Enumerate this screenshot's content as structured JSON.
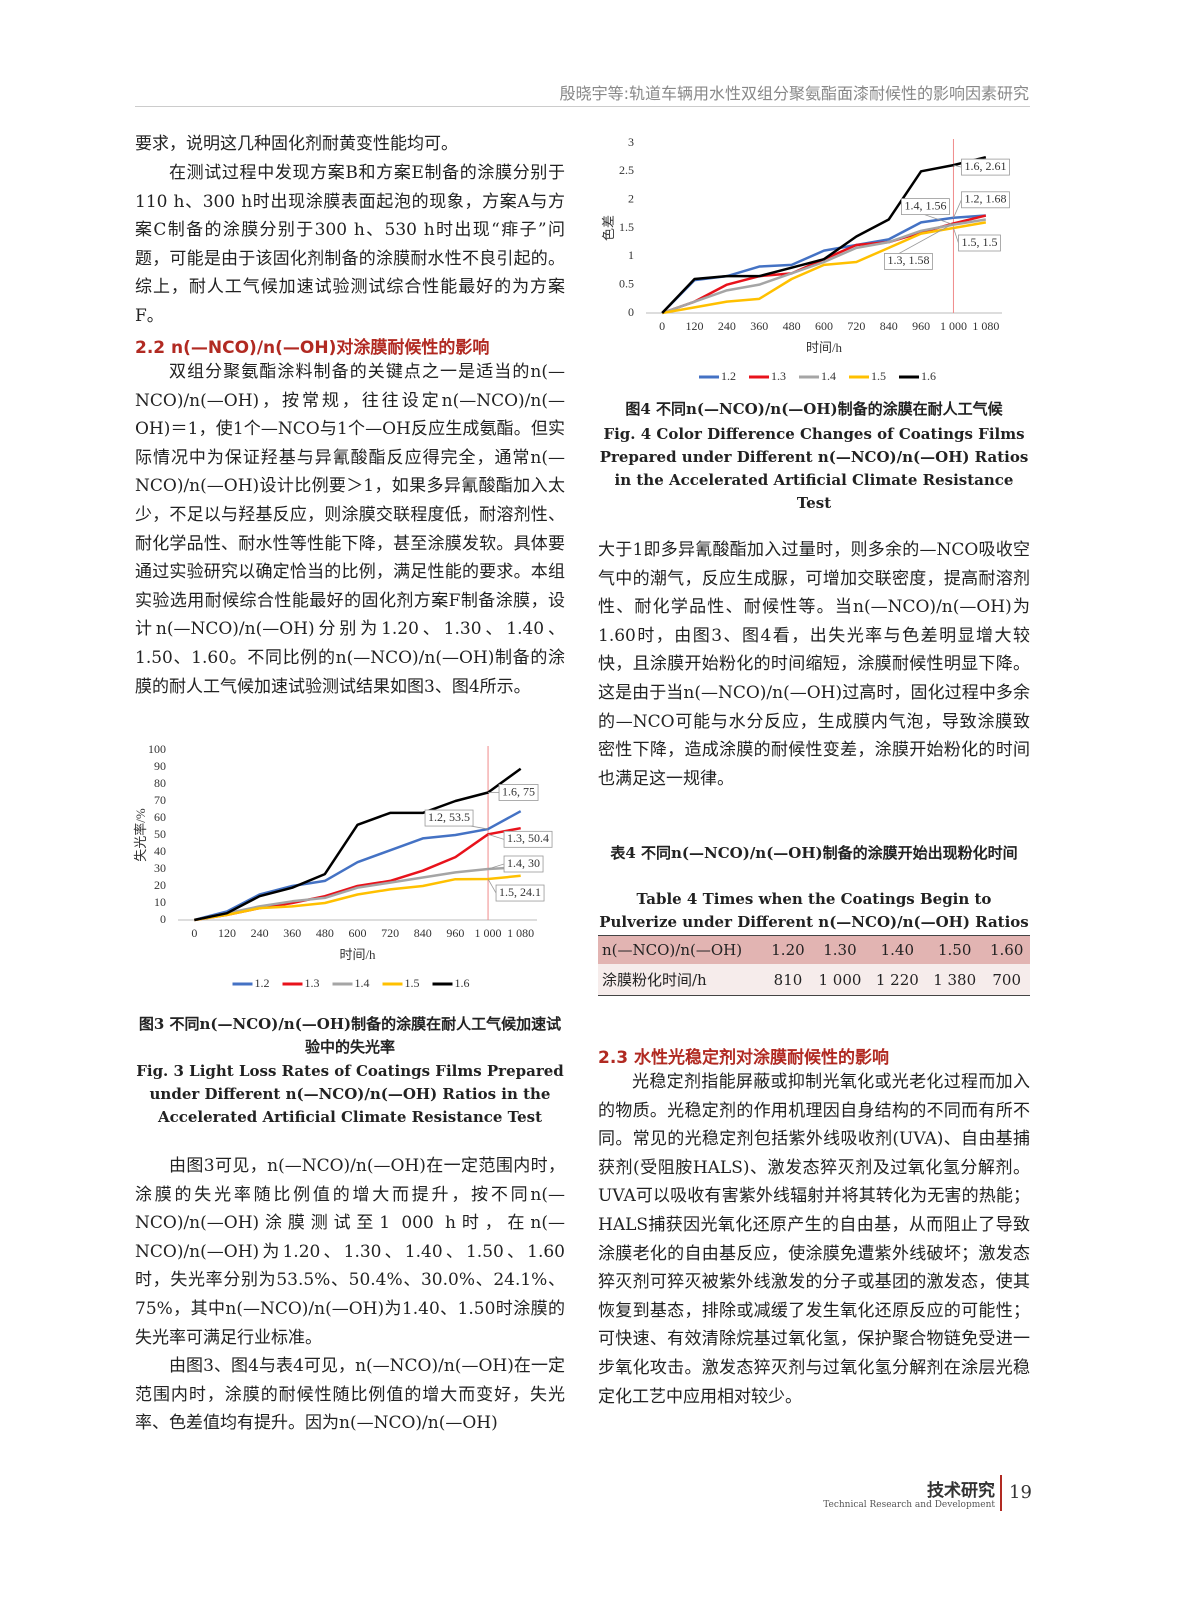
{
  "header": {
    "running_title": "殷晓宇等:轨道车辆用水性双组分聚氨酯面漆耐候性的影响因素研究"
  },
  "headings": [
    "2.2  n(—NCO)/n(—OH)对涂膜耐候性的影响",
    "2.3  水性光稳定剂对涂膜耐候性的影响"
  ],
  "paragraphs": [
    "要求，说明这几种固化剂耐黄变性能均可。",
    "在测试过程中发现方案B和方案E制备的涂膜分别于110 h、300 h时出现涂膜表面起泡的现象，方案A与方案C制备的涂膜分别于300 h、530 h时出现“痱子”问题，可能是由于该固化剂制备的涂膜耐水性不良引起的。综上，耐人工气候加速试验测试综合性能最好的为方案F。",
    "双组分聚氨酯涂料制备的关键点之一是适当的n(—NCO)/n(—OH)，按常规，往往设定n(—NCO)/n(—OH)＝1，使1个—NCO与1个—OH反应生成氨酯。但实际情况中为保证羟基与异氰酸酯反应得完全，通常n(—NCO)/n(—OH)设计比例要＞1，如果多异氰酸酯加入太少，不足以与羟基反应，则涂膜交联程度低，耐溶剂性、耐化学品性、耐水性等性能下降，甚至涂膜发软。具体要通过实验研究以确定恰当的比例，满足性能的要求。本组实验选用耐候综合性能最好的固化剂方案F制备涂膜，设计n(—NCO)/n(—OH)分别为1.20、1.30、1.40、1.50、1.60。不同比例的n(—NCO)/n(—OH)制备的涂膜的耐人工气候加速试验测试结果如图3、图4所示。",
    "由图3可见，n(—NCO)/n(—OH)在一定范围内时，涂膜的失光率随比例值的增大而提升，按不同n(—NCO)/n(—OH)涂膜测试至1 000 h时，在n(—NCO)/n(—OH)为1.20、1.30、1.40、1.50、1.60时，失光率分别为53.5%、50.4%、30.0%、24.1%、75%，其中n(—NCO)/n(—OH)为1.40、1.50时涂膜的失光率可满足行业标准。",
    "由图3、图4与表4可见，n(—NCO)/n(—OH)在一定范围内时，涂膜的耐候性随比例值的增大而变好，失光率、色差值均有提升。因为n(—NCO)/n(—OH)",
    "大于1即多异氰酸酯加入过量时，则多余的—NCO吸收空气中的潮气，反应生成脲，可增加交联密度，提高耐溶剂性、耐化学品性、耐候性等。当n(—NCO)/n(—OH)为1.60时，由图3、图4看，出失光率与色差明显增大较快，且涂膜开始粉化的时间缩短，涂膜耐候性明显下降。这是由于当n(—NCO)/n(—OH)过高时，固化过程中多余的—NCO可能与水分反应，生成膜内气泡，导致涂膜致密性下降，造成涂膜的耐候性变差，涂膜开始粉化的时间也满足这一规律。",
    "光稳定剂指能屏蔽或抑制光氧化或光老化过程而加入的物质。光稳定剂的作用机理因自身结构的不同而有所不同。常见的光稳定剂包括紫外线吸收剂(UVA)、自由基捕获剂(受阻胺HALS)、激发态猝灭剂及过氧化氢分解剂。UVA可以吸收有害紫外线辐射并将其转化为无害的热能；HALS捕获因光氧化还原产生的自由基，从而阻止了导致涂膜老化的自由基反应，使涂膜免遭紫外线破坏；激发态猝灭剂可猝灭被紫外线激发的分子或基团的激发态，使其恢复到基态，排除或减缓了发生氧化还原反应的可能性；可快速、有效清除烷基过氧化氢，保护聚合物链免受进一步氧化攻击。激发态猝灭剂与过氧化氢分解剂在涂层光稳定化工艺中应用相对较少。"
  ],
  "chart_data": [
    {
      "type": "line",
      "title": "图3  不同n(—NCO)/n(—OH)制备的涂膜在耐人工气候加速试验中的失光率",
      "subtitle": "Fig. 3  Light Loss Rates of Coatings Films Prepared under Different n(—NCO)/n(—OH) Ratios in the Accelerated Artificial Climate Resistance Test",
      "x_label": "时间/h",
      "y_label": "失光率/%",
      "categories": [
        "0",
        "120",
        "240",
        "360",
        "480",
        "600",
        "720",
        "840",
        "960",
        "1 000",
        "1 080"
      ],
      "ylim": [
        0,
        100
      ],
      "yticks": [
        0,
        10,
        20,
        30,
        40,
        50,
        60,
        70,
        80,
        90,
        100
      ],
      "grid": false,
      "series": [
        {
          "name": "1.2",
          "color": "#4472c4",
          "values": [
            0,
            5,
            15,
            20,
            23,
            34,
            41,
            48,
            50,
            53.5,
            64
          ],
          "value_labels": [
            null,
            null,
            null,
            null,
            null,
            null,
            null,
            null,
            null,
            "1.2, 53.5",
            null
          ]
        },
        {
          "name": "1.3",
          "color": "#e8121b",
          "values": [
            0,
            3,
            7,
            10,
            14,
            20,
            23,
            29,
            37,
            50.4,
            54
          ],
          "value_labels": [
            null,
            null,
            null,
            null,
            null,
            null,
            null,
            null,
            null,
            "1.3, 50.4",
            null
          ]
        },
        {
          "name": "1.4",
          "color": "#a5a5a5",
          "values": [
            0,
            4,
            8,
            11,
            13,
            19,
            22,
            25,
            28,
            30,
            31
          ],
          "value_labels": [
            null,
            null,
            null,
            null,
            null,
            null,
            null,
            null,
            null,
            "1.4, 30",
            null
          ]
        },
        {
          "name": "1.5",
          "color": "#ffc000",
          "values": [
            0,
            3,
            7,
            8,
            10,
            15,
            18,
            20,
            24,
            24.1,
            26
          ],
          "value_labels": [
            null,
            null,
            null,
            null,
            null,
            null,
            null,
            null,
            null,
            "1.5, 24.1",
            null
          ]
        },
        {
          "name": "1.6",
          "color": "#000000",
          "values": [
            0,
            4,
            14,
            19,
            27,
            56,
            63,
            63,
            70,
            75,
            89
          ],
          "value_labels": [
            null,
            null,
            null,
            null,
            null,
            null,
            null,
            null,
            null,
            "1.6, 75",
            null
          ]
        }
      ]
    },
    {
      "type": "line",
      "title": "图4  不同n(—NCO)/n(—OH)制备的涂膜在耐人工气候",
      "subtitle": "Fig. 4  Color Difference Changes of Coatings Films Prepared under Different n(—NCO)/n(—OH) Ratios in the Accelerated Artificial Climate Resistance Test",
      "x_label": "时间/h",
      "y_label": "色差",
      "categories": [
        "0",
        "120",
        "240",
        "360",
        "480",
        "600",
        "720",
        "840",
        "960",
        "1 000",
        "1 080"
      ],
      "ylim": [
        0,
        3
      ],
      "yticks": [
        0,
        0.5,
        1,
        1.5,
        2,
        2.5,
        3
      ],
      "grid": false,
      "series": [
        {
          "name": "1.2",
          "color": "#4472c4",
          "values": [
            0,
            0.58,
            0.65,
            0.82,
            0.85,
            1.1,
            1.2,
            1.3,
            1.6,
            1.68,
            1.72
          ],
          "value_labels": [
            null,
            null,
            null,
            null,
            null,
            null,
            null,
            null,
            null,
            "1.2, 1.68",
            null
          ]
        },
        {
          "name": "1.3",
          "color": "#e8121b",
          "values": [
            0,
            0.2,
            0.5,
            0.65,
            0.7,
            0.95,
            1.2,
            1.25,
            1.42,
            1.58,
            1.72
          ],
          "value_labels": [
            null,
            null,
            null,
            null,
            null,
            null,
            null,
            null,
            null,
            "1.3, 1.58",
            null
          ]
        },
        {
          "name": "1.4",
          "color": "#a5a5a5",
          "values": [
            0,
            0.2,
            0.4,
            0.5,
            0.7,
            0.9,
            1.15,
            1.25,
            1.45,
            1.56,
            1.65
          ],
          "value_labels": [
            null,
            null,
            null,
            null,
            null,
            null,
            null,
            null,
            null,
            "1.4, 1.56",
            null
          ]
        },
        {
          "name": "1.5",
          "color": "#ffc000",
          "values": [
            0,
            0.1,
            0.2,
            0.25,
            0.6,
            0.85,
            0.9,
            1.15,
            1.4,
            1.5,
            1.6
          ],
          "value_labels": [
            null,
            null,
            null,
            null,
            null,
            null,
            null,
            null,
            null,
            "1.5, 1.5",
            null
          ]
        },
        {
          "name": "1.6",
          "color": "#000000",
          "values": [
            0,
            0.6,
            0.65,
            0.65,
            0.8,
            0.95,
            1.35,
            1.65,
            2.5,
            2.61,
            2.75
          ],
          "value_labels": [
            null,
            null,
            null,
            null,
            null,
            null,
            null,
            null,
            null,
            "1.6, 2.61",
            null
          ]
        }
      ]
    }
  ],
  "table": {
    "title": "表4  不同n(—NCO)/n(—OH)制备的涂膜开始出现粉化时间",
    "subtitle": "Table 4  Times when the Coatings Begin to Pulverize under Different n(—NCO)/n(—OH) Ratios",
    "header": [
      "n(—NCO)/n(—OH)",
      "1.20",
      "1.30",
      "1.40",
      "1.50",
      "1.60"
    ],
    "rows": [
      [
        "涂膜粉化时间/h",
        "810",
        "1 000",
        "1 220",
        "1 380",
        "700"
      ]
    ]
  },
  "footer": {
    "section_zh": "技术研究",
    "section_en": "Technical Research and Development",
    "page_number": "19"
  }
}
